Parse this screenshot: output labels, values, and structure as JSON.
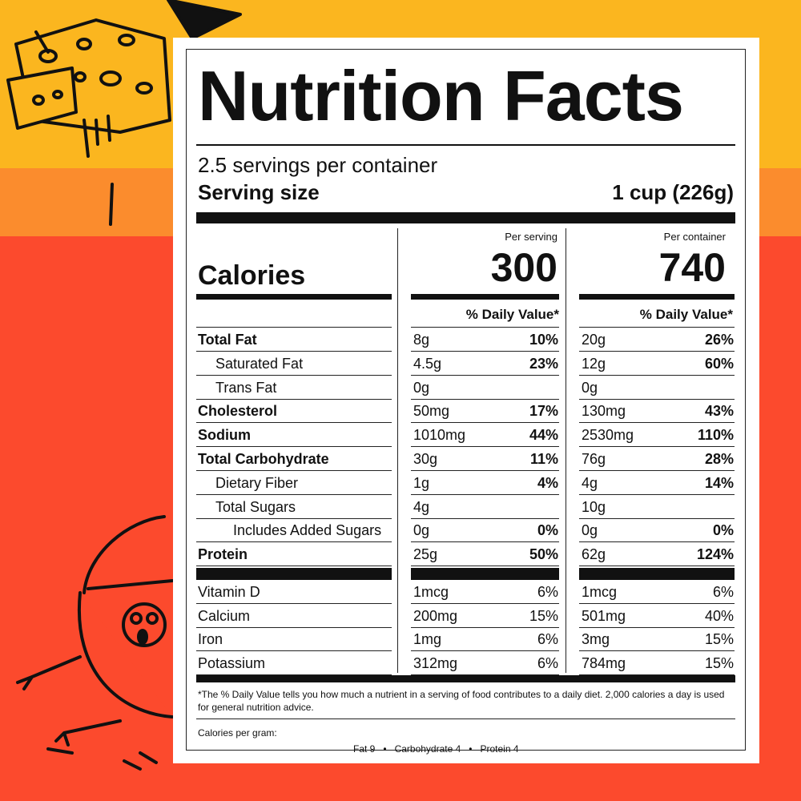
{
  "label": {
    "title": "Nutrition Facts",
    "servings_per_container": "2.5 servings per container",
    "serving_size_label": "Serving size",
    "serving_size_value": "1 cup (226g)",
    "per_serving_header": "Per serving",
    "per_container_header": "Per container",
    "calories_label": "Calories",
    "calories_per_serving": "300",
    "calories_per_container": "740",
    "dv_header": "% Daily Value*",
    "nutrients": [
      {
        "name": "Total Fat",
        "serving_amount": "8g",
        "serving_dv": "10%",
        "container_amount": "20g",
        "container_dv": "26%"
      },
      {
        "name": "Saturated Fat",
        "serving_amount": "4.5g",
        "serving_dv": "23%",
        "container_amount": "12g",
        "container_dv": "60%"
      },
      {
        "name": "Trans Fat",
        "serving_amount": "0g",
        "serving_dv": "",
        "container_amount": "0g",
        "container_dv": ""
      },
      {
        "name": "Cholesterol",
        "serving_amount": "50mg",
        "serving_dv": "17%",
        "container_amount": "130mg",
        "container_dv": "43%"
      },
      {
        "name": "Sodium",
        "serving_amount": "1010mg",
        "serving_dv": "44%",
        "container_amount": "2530mg",
        "container_dv": "110%"
      },
      {
        "name": "Total Carbohydrate",
        "serving_amount": "30g",
        "serving_dv": "11%",
        "container_amount": "76g",
        "container_dv": "28%"
      },
      {
        "name": "Dietary Fiber",
        "serving_amount": "1g",
        "serving_dv": "4%",
        "container_amount": "4g",
        "container_dv": "14%"
      },
      {
        "name": "Total Sugars",
        "serving_amount": "4g",
        "serving_dv": "",
        "container_amount": "10g",
        "container_dv": ""
      },
      {
        "name": "Includes Added Sugars",
        "serving_amount": "0g",
        "serving_dv": "0%",
        "container_amount": "0g",
        "container_dv": "0%"
      },
      {
        "name": "Protein",
        "serving_amount": "25g",
        "serving_dv": "50%",
        "container_amount": "62g",
        "container_dv": "124%"
      }
    ],
    "vitamins": [
      {
        "name": "Vitamin D",
        "serving_amount": "1mcg",
        "serving_dv": "6%",
        "container_amount": "1mcg",
        "container_dv": "6%"
      },
      {
        "name": "Calcium",
        "serving_amount": "200mg",
        "serving_dv": "15%",
        "container_amount": "501mg",
        "container_dv": "40%"
      },
      {
        "name": "Iron",
        "serving_amount": "1mg",
        "serving_dv": "6%",
        "container_amount": "3mg",
        "container_dv": "15%"
      },
      {
        "name": "Potassium",
        "serving_amount": "312mg",
        "serving_dv": "6%",
        "container_amount": "784mg",
        "container_dv": "15%"
      }
    ],
    "footnote": "*The % Daily Value tells you how much a nutrient in a serving of food contributes to a daily diet. 2,000 calories a day is used for general nutrition advice.",
    "calories_per_gram_label": "Calories per gram:",
    "calories_per_gram": [
      "Fat 9",
      "Carbohydrate 4",
      "Protein 4"
    ]
  },
  "colors": {
    "band_yellow": "#fbb61f",
    "band_orange": "#fb8c2d",
    "band_red": "#fc4a2d"
  }
}
